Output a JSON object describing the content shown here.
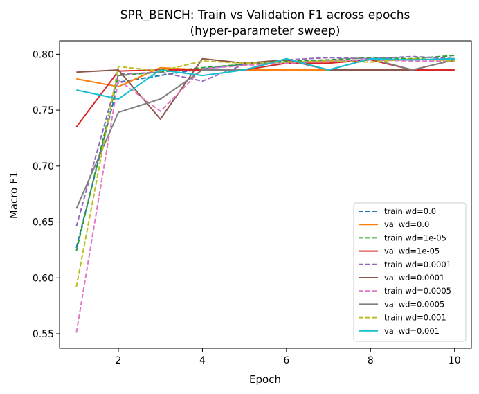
{
  "chart_data": {
    "type": "line",
    "title": "SPR_BENCH: Train vs Validation F1 across epochs",
    "subtitle": "(hyper-parameter sweep)",
    "xlabel": "Epoch",
    "ylabel": "Macro F1",
    "xlim": [
      0.6,
      10.4
    ],
    "ylim": [
      0.537,
      0.812
    ],
    "xticks": [
      2,
      4,
      6,
      8,
      10
    ],
    "yticks": [
      0.55,
      0.6,
      0.65,
      0.7,
      0.75,
      0.8
    ],
    "ytick_labels": [
      "0.55",
      "0.60",
      "0.65",
      "0.70",
      "0.75",
      "0.80"
    ],
    "grid": false,
    "legend_position": "lower-right",
    "x": [
      1,
      2,
      3,
      4,
      5,
      6,
      7,
      8,
      9,
      10
    ],
    "series": [
      {
        "name": "train wd=0.0",
        "color": "#1f77b4",
        "dashed": true,
        "values": [
          0.627,
          0.775,
          0.781,
          0.787,
          0.791,
          0.793,
          0.794,
          0.795,
          0.795,
          0.796
        ]
      },
      {
        "name": "val wd=0.0",
        "color": "#ff7f0e",
        "dashed": false,
        "values": [
          0.778,
          0.771,
          0.788,
          0.786,
          0.786,
          0.786,
          0.786,
          0.786,
          0.786,
          0.786
        ]
      },
      {
        "name": "train wd=1e-05",
        "color": "#2ca02c",
        "dashed": true,
        "values": [
          0.624,
          0.781,
          0.784,
          0.788,
          0.791,
          0.794,
          0.795,
          0.797,
          0.796,
          0.799
        ]
      },
      {
        "name": "val wd=1e-05",
        "color": "#d62728",
        "dashed": false,
        "values": [
          0.735,
          0.785,
          0.786,
          0.786,
          0.786,
          0.792,
          0.792,
          0.795,
          0.786,
          0.786
        ]
      },
      {
        "name": "train wd=0.0001",
        "color": "#9467bd",
        "dashed": true,
        "values": [
          0.646,
          0.782,
          0.784,
          0.776,
          0.791,
          0.795,
          0.797,
          0.796,
          0.798,
          0.796
        ]
      },
      {
        "name": "val wd=0.0001",
        "color": "#8c564b",
        "dashed": false,
        "values": [
          0.784,
          0.786,
          0.742,
          0.796,
          0.792,
          0.795,
          0.786,
          0.786,
          0.786,
          0.795
        ]
      },
      {
        "name": "train wd=0.0005",
        "color": "#e377c2",
        "dashed": true,
        "values": [
          0.551,
          0.777,
          0.749,
          0.787,
          0.79,
          0.792,
          0.794,
          0.795,
          0.794,
          0.794
        ]
      },
      {
        "name": "val wd=0.0005",
        "color": "#7f7f7f",
        "dashed": false,
        "values": [
          0.662,
          0.748,
          0.76,
          0.786,
          0.786,
          0.796,
          0.786,
          0.796,
          0.786,
          0.795
        ]
      },
      {
        "name": "train wd=0.001",
        "color": "#bcbd22",
        "dashed": true,
        "values": [
          0.592,
          0.789,
          0.785,
          0.794,
          0.792,
          0.793,
          0.794,
          0.793,
          0.796,
          0.794
        ]
      },
      {
        "name": "val wd=0.001",
        "color": "#17becf",
        "dashed": false,
        "values": [
          0.768,
          0.76,
          0.786,
          0.781,
          0.786,
          0.796,
          0.786,
          0.796,
          0.795,
          0.796
        ]
      }
    ]
  }
}
